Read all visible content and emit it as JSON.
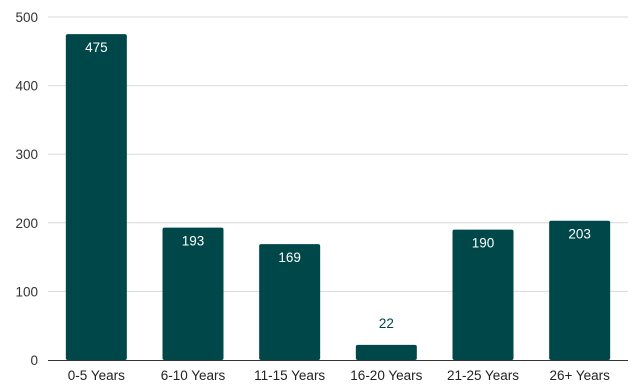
{
  "chart_data": {
    "type": "bar",
    "categories": [
      "0-5 Years",
      "6-10 Years",
      "11-15 Years",
      "16-20 Years",
      "21-25 Years",
      "26+ Years"
    ],
    "values": [
      475,
      193,
      169,
      22,
      190,
      203
    ],
    "data_labels": [
      "475",
      "193",
      "169",
      "22",
      "190",
      "203"
    ],
    "ylim": [
      0,
      500
    ],
    "yticks": [
      0,
      100,
      200,
      300,
      400,
      500
    ],
    "title": "",
    "xlabel": "",
    "ylabel": "",
    "grid": true,
    "legend": "none",
    "bar_color": "#00474A",
    "label_inside_color": "#FFFFFF",
    "label_outside_color": "#00474A",
    "grid_color": "#D9D9D9",
    "baseline_color": "#333333"
  }
}
